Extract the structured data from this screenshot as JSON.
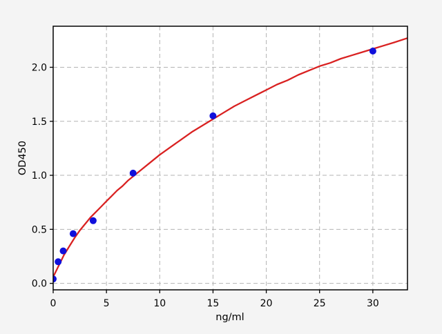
{
  "figure": {
    "background_color": "#f4f4f4",
    "plot_background_color": "#ffffff"
  },
  "chart_data": {
    "type": "scatter",
    "xlabel": "ng/ml",
    "ylabel": "OD450",
    "xlim": [
      0,
      33.25
    ],
    "ylim": [
      -0.06,
      2.38
    ],
    "grid": true,
    "grid_style": "dashed",
    "legend_position": "none",
    "xticks": {
      "values": [
        0,
        5,
        10,
        15,
        20,
        25,
        30
      ],
      "labels": [
        "0",
        "5",
        "10",
        "15",
        "20",
        "25",
        "30"
      ]
    },
    "yticks": {
      "values": [
        0.0,
        0.5,
        1.0,
        1.5,
        2.0
      ],
      "labels": [
        "0.0",
        "0.5",
        "1.0",
        "1.5",
        "2.0"
      ]
    },
    "series": [
      {
        "name": "standard-points",
        "type": "scatter",
        "color": "#1010dc",
        "marker": "circle",
        "x": [
          0,
          0.469,
          0.938,
          1.875,
          3.75,
          7.5,
          15,
          30
        ],
        "y": [
          0.04,
          0.2,
          0.3,
          0.46,
          0.58,
          1.02,
          1.55,
          2.15
        ]
      },
      {
        "name": "fit-curve",
        "type": "line",
        "color": "#d92121",
        "x": [
          0,
          0.25,
          0.5,
          0.75,
          1,
          1.25,
          1.5,
          2,
          2.5,
          3,
          3.5,
          4,
          4.5,
          5,
          5.5,
          6,
          6.5,
          7,
          7.5,
          8,
          9,
          10,
          11,
          12,
          13,
          14,
          15,
          16,
          17,
          18,
          19,
          20,
          21,
          22,
          23,
          24,
          25,
          26,
          27,
          28,
          29,
          30,
          31,
          32,
          33.25
        ],
        "y": [
          0.06,
          0.11,
          0.16,
          0.21,
          0.26,
          0.3,
          0.34,
          0.42,
          0.49,
          0.55,
          0.61,
          0.66,
          0.71,
          0.76,
          0.81,
          0.86,
          0.9,
          0.95,
          0.99,
          1.03,
          1.11,
          1.19,
          1.26,
          1.33,
          1.4,
          1.46,
          1.52,
          1.58,
          1.64,
          1.69,
          1.74,
          1.79,
          1.84,
          1.88,
          1.93,
          1.97,
          2.01,
          2.04,
          2.08,
          2.11,
          2.14,
          2.17,
          2.2,
          2.23,
          2.27
        ]
      }
    ],
    "colors": {
      "grid": "#b3b3b3",
      "spine": "#000000",
      "tick": "#000000",
      "text": "#000000"
    }
  }
}
